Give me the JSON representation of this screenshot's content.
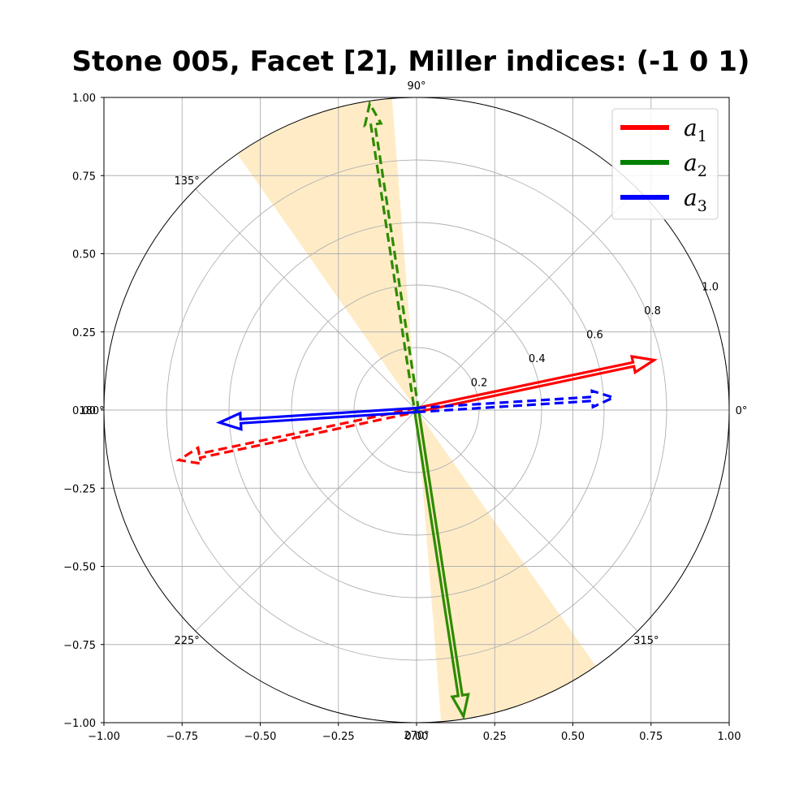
{
  "chart_data": {
    "type": "polar-vector",
    "title": "Stone 005, Facet [2], Miller indices: (-1  0  1)",
    "xlim": [
      -1.0,
      1.0
    ],
    "ylim": [
      -1.0,
      1.0
    ],
    "x_ticks": [
      "−1.00",
      "−0.75",
      "−0.50",
      "−0.25",
      "0.00",
      "0.25",
      "0.50",
      "0.75",
      "1.00"
    ],
    "y_ticks": [
      "−1.00",
      "−0.75",
      "−0.50",
      "−0.25",
      "0.00",
      "0.25",
      "0.50",
      "0.75",
      "1.00"
    ],
    "tick_values": [
      -1.0,
      -0.75,
      -0.5,
      -0.25,
      0.0,
      0.25,
      0.5,
      0.75,
      1.0
    ],
    "angle_ticks": [
      {
        "deg": 0,
        "label": "0°"
      },
      {
        "deg": 45,
        "label": ""
      },
      {
        "deg": 90,
        "label": "90°"
      },
      {
        "deg": 135,
        "label": "135°"
      },
      {
        "deg": 180,
        "label": "180°"
      },
      {
        "deg": 225,
        "label": "225°"
      },
      {
        "deg": 270,
        "label": "270°"
      },
      {
        "deg": 315,
        "label": "315°"
      }
    ],
    "radial_ticks": [
      {
        "r": 0.2,
        "label": "0.2"
      },
      {
        "r": 0.4,
        "label": "0.4"
      },
      {
        "r": 0.6,
        "label": "0.6"
      },
      {
        "r": 0.8,
        "label": "0.8"
      },
      {
        "r": 1.0,
        "label": "1.0"
      }
    ],
    "grid": true,
    "legend_position": "top-right",
    "legend": [
      {
        "key": "a1",
        "base": "a",
        "sub": "1",
        "color": "#ff0000"
      },
      {
        "key": "a2",
        "base": "a",
        "sub": "2",
        "color": "#008000"
      },
      {
        "key": "a3",
        "base": "a",
        "sub": "3",
        "color": "#0000ff"
      }
    ],
    "vectors": [
      {
        "series": "a1",
        "style": "solid",
        "color": "#ff0000",
        "x": 0.76,
        "y": 0.16
      },
      {
        "series": "a1",
        "style": "dashed",
        "color": "#ff0000",
        "x": -0.76,
        "y": -0.16
      },
      {
        "series": "a2",
        "style": "solid",
        "color": "#2e8b00",
        "x": 0.15,
        "y": -0.98
      },
      {
        "series": "a2",
        "style": "dashed",
        "color": "#2e8b00",
        "x": -0.15,
        "y": 0.98
      },
      {
        "series": "a3",
        "style": "solid",
        "color": "#0000ff",
        "x": -0.63,
        "y": -0.04
      },
      {
        "series": "a3",
        "style": "dashed",
        "color": "#0000ff",
        "x": 0.63,
        "y": 0.04
      }
    ],
    "shaded_sectors": [
      {
        "theta_start_deg": 94.5,
        "theta_end_deg": 125.0,
        "color": "#ffe5b4"
      },
      {
        "theta_start_deg": 274.5,
        "theta_end_deg": 305.0,
        "color": "#ffe5b4"
      }
    ]
  }
}
